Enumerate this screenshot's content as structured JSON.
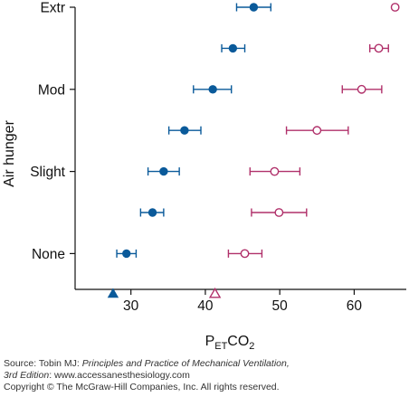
{
  "chart_data": {
    "type": "scatter",
    "orientation": "horizontal",
    "ylabel": "Air hunger",
    "xlabel": {
      "main": "P",
      "sub": "ET",
      "tail": "CO",
      "tail_sub": "2"
    },
    "categories": [
      "None",
      "Slight",
      "Mod",
      "Extr"
    ],
    "category_levels": [
      1,
      3,
      5,
      7
    ],
    "ylim": [
      0,
      7
    ],
    "xlim": [
      22.5,
      67
    ],
    "xticks": [
      30,
      40,
      50,
      60
    ],
    "grid": false,
    "legend": "none",
    "series": [
      {
        "color": "#0a5a9a",
        "marker": "filled-circle",
        "points": [
          {
            "y": 1,
            "x": 29.4,
            "err": [
              28.1,
              30.7
            ]
          },
          {
            "y": 2,
            "x": 32.9,
            "err": [
              31.3,
              34.4
            ]
          },
          {
            "y": 3,
            "x": 34.4,
            "err": [
              32.3,
              36.5
            ]
          },
          {
            "y": 4,
            "x": 37.2,
            "err": [
              35.1,
              39.4
            ]
          },
          {
            "y": 5,
            "x": 41.0,
            "err": [
              38.4,
              43.5
            ]
          },
          {
            "y": 6,
            "x": 43.7,
            "err": [
              42.2,
              45.3
            ]
          },
          {
            "y": 7,
            "x": 46.5,
            "err": [
              44.2,
              48.8
            ]
          }
        ],
        "baseline_marker": {
          "shape": "filled-triangle",
          "x": 27.6
        }
      },
      {
        "color": "#b0306a",
        "marker": "open-circle",
        "points": [
          {
            "y": 1,
            "x": 45.3,
            "err": [
              43.1,
              47.6
            ]
          },
          {
            "y": 2,
            "x": 49.9,
            "err": [
              46.2,
              53.6
            ]
          },
          {
            "y": 3,
            "x": 49.3,
            "err": [
              46.0,
              52.7
            ]
          },
          {
            "y": 4,
            "x": 55.0,
            "err": [
              50.9,
              59.2
            ]
          },
          {
            "y": 5,
            "x": 61.0,
            "err": [
              58.4,
              63.7
            ]
          },
          {
            "y": 6,
            "x": 63.3,
            "err": [
              62.1,
              64.6
            ]
          },
          {
            "y": 7,
            "x": 65.5,
            "err": null
          }
        ],
        "baseline_marker": {
          "shape": "open-triangle",
          "x": 41.3
        }
      }
    ]
  },
  "source": {
    "prefix": "Source: Tobin MJ: ",
    "book": "Principles and Practice of Mechanical Ventilation,",
    "edition": "3rd Edition",
    "site_sep": ": ",
    "site": "www.accessanesthesiology.com",
    "copyright": "Copyright © The McGraw-Hill Companies, Inc. All rights reserved."
  }
}
